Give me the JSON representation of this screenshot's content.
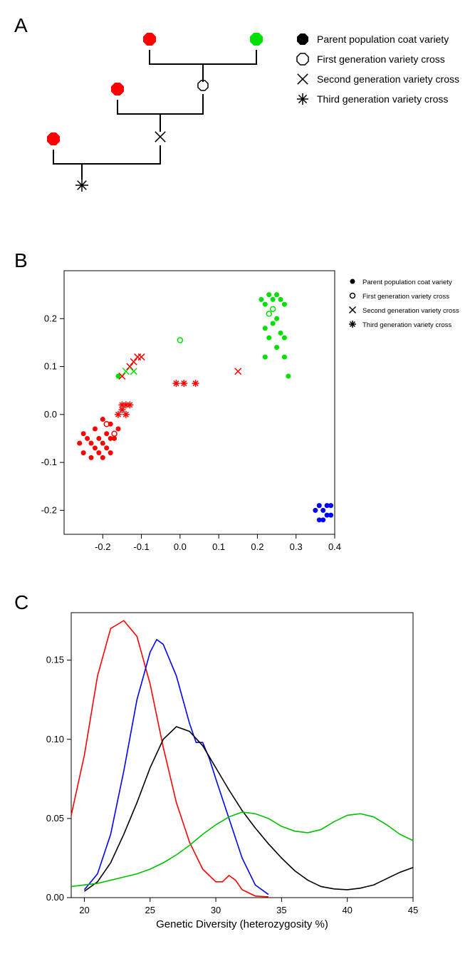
{
  "panelA": {
    "label": "A",
    "legend": [
      {
        "marker": "filled-hex",
        "label": "Parent population coat variety"
      },
      {
        "marker": "open-hex",
        "label": "First generation variety cross"
      },
      {
        "marker": "x",
        "label": "Second generation variety cross"
      },
      {
        "marker": "asterisk",
        "label": "Third generation variety cross"
      }
    ],
    "tree": {
      "parent1_color": "#ff0000",
      "parent2_color": "#00e000",
      "line_color": "#000000"
    }
  },
  "panelB": {
    "label": "B",
    "xlim": [
      -0.3,
      0.4
    ],
    "ylim": [
      -0.25,
      0.3
    ],
    "xticks": [
      -0.2,
      -0.1,
      0.0,
      0.1,
      0.2,
      0.3,
      0.4
    ],
    "yticks": [
      -0.2,
      -0.1,
      0.0,
      0.1,
      0.2
    ],
    "legend": [
      {
        "marker": "filled-circle",
        "label": "Parent population coat variety"
      },
      {
        "marker": "open-circle",
        "label": "First generation variety cross"
      },
      {
        "marker": "x",
        "label": "Second generation variety cross"
      },
      {
        "marker": "asterisk",
        "label": "Third generation variety cross"
      }
    ],
    "colors": {
      "red": "#ff0000",
      "green": "#00e000",
      "blue": "#0000ff"
    },
    "points": [
      {
        "x": -0.26,
        "y": -0.06,
        "c": "red",
        "m": "filled"
      },
      {
        "x": -0.25,
        "y": -0.04,
        "c": "red",
        "m": "filled"
      },
      {
        "x": -0.25,
        "y": -0.08,
        "c": "red",
        "m": "filled"
      },
      {
        "x": -0.24,
        "y": -0.05,
        "c": "red",
        "m": "filled"
      },
      {
        "x": -0.23,
        "y": -0.06,
        "c": "red",
        "m": "filled"
      },
      {
        "x": -0.23,
        "y": -0.09,
        "c": "red",
        "m": "filled"
      },
      {
        "x": -0.22,
        "y": -0.07,
        "c": "red",
        "m": "filled"
      },
      {
        "x": -0.22,
        "y": -0.03,
        "c": "red",
        "m": "filled"
      },
      {
        "x": -0.21,
        "y": -0.08,
        "c": "red",
        "m": "filled"
      },
      {
        "x": -0.21,
        "y": -0.05,
        "c": "red",
        "m": "filled"
      },
      {
        "x": -0.2,
        "y": -0.09,
        "c": "red",
        "m": "filled"
      },
      {
        "x": -0.2,
        "y": -0.06,
        "c": "red",
        "m": "filled"
      },
      {
        "x": -0.2,
        "y": -0.01,
        "c": "red",
        "m": "filled"
      },
      {
        "x": -0.19,
        "y": -0.07,
        "c": "red",
        "m": "filled"
      },
      {
        "x": -0.19,
        "y": -0.04,
        "c": "red",
        "m": "filled"
      },
      {
        "x": -0.18,
        "y": -0.08,
        "c": "red",
        "m": "filled"
      },
      {
        "x": -0.18,
        "y": -0.05,
        "c": "red",
        "m": "filled"
      },
      {
        "x": -0.18,
        "y": -0.02,
        "c": "red",
        "m": "filled"
      },
      {
        "x": -0.17,
        "y": -0.05,
        "c": "red",
        "m": "filled"
      },
      {
        "x": -0.16,
        "y": -0.03,
        "c": "red",
        "m": "filled"
      },
      {
        "x": -0.19,
        "y": -0.02,
        "c": "red",
        "m": "open"
      },
      {
        "x": -0.17,
        "y": -0.04,
        "c": "red",
        "m": "open"
      },
      {
        "x": -0.16,
        "y": 0.0,
        "c": "red",
        "m": "asterisk"
      },
      {
        "x": -0.15,
        "y": 0.01,
        "c": "red",
        "m": "asterisk"
      },
      {
        "x": -0.15,
        "y": 0.02,
        "c": "red",
        "m": "asterisk"
      },
      {
        "x": -0.14,
        "y": 0.02,
        "c": "red",
        "m": "asterisk"
      },
      {
        "x": -0.14,
        "y": 0.0,
        "c": "red",
        "m": "asterisk"
      },
      {
        "x": -0.13,
        "y": 0.02,
        "c": "red",
        "m": "asterisk"
      },
      {
        "x": -0.16,
        "y": 0.08,
        "c": "green",
        "m": "filled"
      },
      {
        "x": -0.15,
        "y": 0.08,
        "c": "red",
        "m": "x"
      },
      {
        "x": -0.14,
        "y": 0.09,
        "c": "green",
        "m": "x"
      },
      {
        "x": -0.13,
        "y": 0.1,
        "c": "red",
        "m": "x"
      },
      {
        "x": -0.12,
        "y": 0.09,
        "c": "green",
        "m": "x"
      },
      {
        "x": -0.12,
        "y": 0.11,
        "c": "red",
        "m": "x"
      },
      {
        "x": -0.11,
        "y": 0.12,
        "c": "red",
        "m": "x"
      },
      {
        "x": -0.1,
        "y": 0.12,
        "c": "red",
        "m": "x"
      },
      {
        "x": -0.01,
        "y": 0.065,
        "c": "red",
        "m": "asterisk"
      },
      {
        "x": 0.01,
        "y": 0.065,
        "c": "red",
        "m": "asterisk"
      },
      {
        "x": 0.04,
        "y": 0.065,
        "c": "red",
        "m": "asterisk"
      },
      {
        "x": 0.0,
        "y": 0.155,
        "c": "green",
        "m": "open"
      },
      {
        "x": 0.15,
        "y": 0.09,
        "c": "red",
        "m": "x"
      },
      {
        "x": 0.21,
        "y": 0.24,
        "c": "green",
        "m": "filled"
      },
      {
        "x": 0.22,
        "y": 0.23,
        "c": "green",
        "m": "filled"
      },
      {
        "x": 0.22,
        "y": 0.18,
        "c": "green",
        "m": "filled"
      },
      {
        "x": 0.22,
        "y": 0.12,
        "c": "green",
        "m": "filled"
      },
      {
        "x": 0.23,
        "y": 0.25,
        "c": "green",
        "m": "filled"
      },
      {
        "x": 0.23,
        "y": 0.21,
        "c": "green",
        "m": "open"
      },
      {
        "x": 0.23,
        "y": 0.16,
        "c": "green",
        "m": "filled"
      },
      {
        "x": 0.24,
        "y": 0.24,
        "c": "green",
        "m": "filled"
      },
      {
        "x": 0.24,
        "y": 0.22,
        "c": "green",
        "m": "open"
      },
      {
        "x": 0.24,
        "y": 0.19,
        "c": "green",
        "m": "filled"
      },
      {
        "x": 0.25,
        "y": 0.25,
        "c": "green",
        "m": "filled"
      },
      {
        "x": 0.25,
        "y": 0.2,
        "c": "green",
        "m": "filled"
      },
      {
        "x": 0.25,
        "y": 0.14,
        "c": "green",
        "m": "filled"
      },
      {
        "x": 0.26,
        "y": 0.24,
        "c": "green",
        "m": "filled"
      },
      {
        "x": 0.26,
        "y": 0.17,
        "c": "green",
        "m": "filled"
      },
      {
        "x": 0.27,
        "y": 0.23,
        "c": "green",
        "m": "filled"
      },
      {
        "x": 0.27,
        "y": 0.16,
        "c": "green",
        "m": "filled"
      },
      {
        "x": 0.27,
        "y": 0.12,
        "c": "green",
        "m": "filled"
      },
      {
        "x": 0.28,
        "y": 0.08,
        "c": "green",
        "m": "filled"
      },
      {
        "x": 0.35,
        "y": -0.2,
        "c": "blue",
        "m": "filled"
      },
      {
        "x": 0.36,
        "y": -0.19,
        "c": "blue",
        "m": "filled"
      },
      {
        "x": 0.36,
        "y": -0.22,
        "c": "blue",
        "m": "filled"
      },
      {
        "x": 0.37,
        "y": -0.2,
        "c": "blue",
        "m": "filled"
      },
      {
        "x": 0.37,
        "y": -0.22,
        "c": "blue",
        "m": "filled"
      },
      {
        "x": 0.38,
        "y": -0.19,
        "c": "blue",
        "m": "filled"
      },
      {
        "x": 0.38,
        "y": -0.21,
        "c": "blue",
        "m": "filled"
      },
      {
        "x": 0.39,
        "y": -0.19,
        "c": "blue",
        "m": "filled"
      },
      {
        "x": 0.39,
        "y": -0.21,
        "c": "blue",
        "m": "filled"
      }
    ]
  },
  "panelC": {
    "label": "C",
    "xlim": [
      19,
      45
    ],
    "ylim": [
      0,
      0.18
    ],
    "xticks": [
      20,
      25,
      30,
      35,
      40,
      45
    ],
    "yticks": [
      0.0,
      0.05,
      0.1,
      0.15
    ],
    "xlabel": "Genetic Diversity (heterozygosity %)",
    "curves": {
      "red": {
        "color": "#ff0000",
        "pts": [
          [
            19,
            0.052
          ],
          [
            20,
            0.09
          ],
          [
            21,
            0.14
          ],
          [
            22,
            0.17
          ],
          [
            23,
            0.175
          ],
          [
            24,
            0.165
          ],
          [
            25,
            0.135
          ],
          [
            26,
            0.095
          ],
          [
            27,
            0.06
          ],
          [
            28,
            0.035
          ],
          [
            29,
            0.018
          ],
          [
            30,
            0.01
          ],
          [
            30.5,
            0.01
          ],
          [
            31,
            0.014
          ],
          [
            31.5,
            0.011
          ],
          [
            32,
            0.005
          ],
          [
            33,
            0.001
          ],
          [
            34,
            0.0005
          ]
        ]
      },
      "blue": {
        "color": "#0000ff",
        "pts": [
          [
            20,
            0.005
          ],
          [
            21,
            0.015
          ],
          [
            22,
            0.04
          ],
          [
            23,
            0.08
          ],
          [
            24,
            0.125
          ],
          [
            25,
            0.155
          ],
          [
            25.5,
            0.163
          ],
          [
            26,
            0.16
          ],
          [
            27,
            0.14
          ],
          [
            28,
            0.11
          ],
          [
            28.5,
            0.098
          ],
          [
            29,
            0.098
          ],
          [
            29.5,
            0.088
          ],
          [
            30,
            0.075
          ],
          [
            31,
            0.05
          ],
          [
            32,
            0.025
          ],
          [
            33,
            0.008
          ],
          [
            34,
            0.002
          ]
        ]
      },
      "black": {
        "color": "#000000",
        "pts": [
          [
            20,
            0.004
          ],
          [
            21,
            0.01
          ],
          [
            22,
            0.022
          ],
          [
            23,
            0.04
          ],
          [
            24,
            0.06
          ],
          [
            25,
            0.082
          ],
          [
            26,
            0.1
          ],
          [
            27,
            0.108
          ],
          [
            28,
            0.105
          ],
          [
            29,
            0.096
          ],
          [
            30,
            0.082
          ],
          [
            31,
            0.068
          ],
          [
            32,
            0.055
          ],
          [
            33,
            0.044
          ],
          [
            34,
            0.034
          ],
          [
            35,
            0.025
          ],
          [
            36,
            0.017
          ],
          [
            37,
            0.011
          ],
          [
            38,
            0.007
          ],
          [
            39,
            0.0055
          ],
          [
            40,
            0.005
          ],
          [
            41,
            0.006
          ],
          [
            42,
            0.008
          ],
          [
            43,
            0.012
          ],
          [
            44,
            0.016
          ],
          [
            45,
            0.019
          ]
        ]
      },
      "green": {
        "color": "#00c000",
        "pts": [
          [
            19,
            0.007
          ],
          [
            20,
            0.008
          ],
          [
            21,
            0.009
          ],
          [
            22,
            0.011
          ],
          [
            23,
            0.013
          ],
          [
            24,
            0.015
          ],
          [
            25,
            0.018
          ],
          [
            26,
            0.022
          ],
          [
            27,
            0.027
          ],
          [
            28,
            0.033
          ],
          [
            29,
            0.04
          ],
          [
            30,
            0.046
          ],
          [
            31,
            0.051
          ],
          [
            32,
            0.054
          ],
          [
            33,
            0.053
          ],
          [
            34,
            0.05
          ],
          [
            35,
            0.045
          ],
          [
            36,
            0.042
          ],
          [
            37,
            0.041
          ],
          [
            38,
            0.043
          ],
          [
            39,
            0.048
          ],
          [
            40,
            0.052
          ],
          [
            41,
            0.053
          ],
          [
            42,
            0.051
          ],
          [
            43,
            0.046
          ],
          [
            44,
            0.04
          ],
          [
            45,
            0.036
          ]
        ]
      }
    }
  }
}
